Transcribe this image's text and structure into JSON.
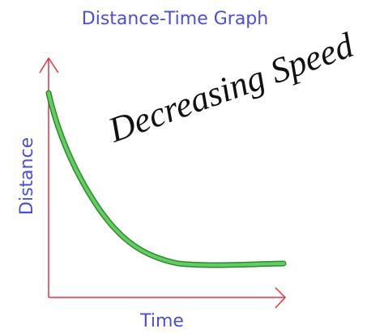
{
  "title": "Distance-Time Graph",
  "x_label": "Time",
  "y_label": "Distance",
  "annotation": "Decreasing Speed"
}
